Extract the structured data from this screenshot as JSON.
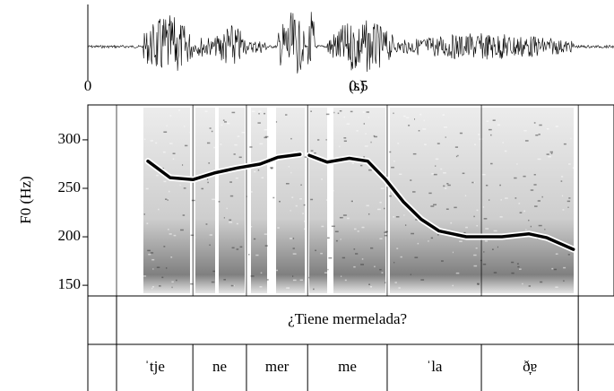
{
  "chart_data": {
    "type": "line",
    "x": [
      0.111,
      0.152,
      0.194,
      0.235,
      0.276,
      0.318,
      0.351,
      0.392,
      0.4,
      0.409,
      0.442,
      0.483,
      0.517,
      0.55,
      0.583,
      0.616,
      0.649,
      0.699,
      0.765,
      0.815,
      0.848,
      0.897
    ],
    "values": [
      278,
      261,
      259,
      266,
      271,
      275,
      282,
      285,
      null,
      284,
      277,
      281,
      278,
      259,
      236,
      218,
      206,
      200,
      200,
      203,
      199,
      187
    ],
    "color": "#000000",
    "ylabel": "F0 (Hz)",
    "xlabel": "(s)",
    "xlim": [
      0,
      0.972
    ],
    "xticks": [
      0,
      0.5
    ],
    "ylim": [
      139,
      336
    ],
    "yticks": [
      150,
      200,
      250,
      300
    ],
    "tiers": [
      {
        "boundaries": [
          0.053,
          0.906
        ],
        "labels": [
          "¿Tiene mermelada?"
        ]
      },
      {
        "boundaries": [
          0.053,
          0.194,
          0.293,
          0.406,
          0.553,
          0.727,
          0.906
        ],
        "labels": [
          "ˈtje",
          "ne",
          "mer",
          "me",
          "ˈla",
          "ð̞ɐ"
        ]
      }
    ]
  }
}
